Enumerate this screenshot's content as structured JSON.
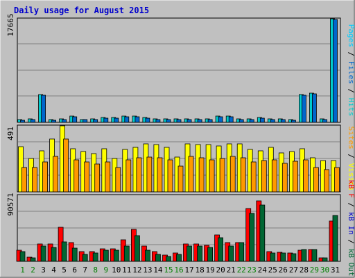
{
  "chart_data": [
    {
      "type": "bar",
      "title": "Daily usage for August 2015",
      "ymax_label": "17665",
      "ymax": 17665,
      "categories": [
        "1",
        "2",
        "3",
        "4",
        "5",
        "6",
        "7",
        "8",
        "9",
        "10",
        "11",
        "12",
        "13",
        "14",
        "15",
        "16",
        "17",
        "18",
        "19",
        "20",
        "21",
        "22",
        "23",
        "24",
        "25",
        "26",
        "27",
        "28",
        "29",
        "30",
        "31"
      ],
      "weekend_days": [
        "1",
        "2",
        "8",
        "9",
        "15",
        "16",
        "22",
        "23",
        "29",
        "30"
      ],
      "right_label": [
        "Pages",
        " / ",
        "Files",
        " / ",
        "Hits"
      ],
      "series": [
        {
          "name": "Hits",
          "color": "#00cccc",
          "values": [
            560,
            700,
            4800,
            560,
            700,
            1160,
            630,
            700,
            930,
            930,
            1160,
            1160,
            930,
            700,
            700,
            700,
            700,
            700,
            700,
            1160,
            1160,
            700,
            700,
            930,
            700,
            700,
            560,
            4800,
            5040,
            700,
            17665
          ]
        },
        {
          "name": "Files",
          "color": "#0066cc",
          "values": [
            490,
            630,
            4660,
            490,
            630,
            1100,
            560,
            630,
            860,
            860,
            1100,
            1100,
            860,
            630,
            630,
            630,
            630,
            630,
            630,
            1100,
            1100,
            630,
            630,
            860,
            630,
            630,
            490,
            4660,
            4930,
            630,
            17500
          ]
        },
        {
          "name": "Pages",
          "color": "#00ccff",
          "values": [
            0,
            0,
            0,
            0,
            0,
            0,
            0,
            0,
            0,
            0,
            0,
            0,
            0,
            0,
            0,
            0,
            0,
            0,
            0,
            0,
            0,
            0,
            0,
            0,
            0,
            0,
            0,
            0,
            0,
            0,
            0
          ]
        }
      ]
    },
    {
      "type": "bar",
      "ymax_label": "491",
      "ymax": 491,
      "right_label": [
        "Sites",
        " / ",
        "Visits"
      ],
      "series": [
        {
          "name": "Visits",
          "color": "#ffff00",
          "values": [
            337,
            249,
            307,
            395,
            491,
            323,
            300,
            285,
            323,
            249,
            315,
            330,
            359,
            352,
            330,
            259,
            359,
            352,
            352,
            345,
            359,
            359,
            315,
            307,
            330,
            293,
            300,
            322,
            256,
            234,
            234
          ]
        },
        {
          "name": "Sites",
          "color": "#ff9900",
          "values": [
            185,
            186,
            227,
            264,
            395,
            242,
            227,
            208,
            227,
            186,
            241,
            256,
            262,
            256,
            241,
            192,
            264,
            255,
            241,
            251,
            264,
            255,
            227,
            234,
            241,
            213,
            228,
            242,
            186,
            171,
            186
          ]
        }
      ]
    },
    {
      "type": "bar",
      "ymax_label": "90571",
      "ymax": 90571,
      "right_label": [
        "kB F",
        " / ",
        "kB In",
        " / ",
        "kB Out"
      ],
      "series": [
        {
          "name": "kB F",
          "color": "#ff0000",
          "values": [
            16000,
            7000,
            25000,
            25000,
            47000,
            26000,
            14000,
            14000,
            18000,
            18000,
            30000,
            44000,
            22000,
            14000,
            9000,
            12000,
            25000,
            25000,
            23000,
            37000,
            26000,
            26000,
            73000,
            83000,
            14000,
            13000,
            12000,
            16000,
            17000,
            6000,
            56000
          ]
        },
        {
          "name": "kB Out",
          "color": "#006633",
          "values": [
            14000,
            6000,
            22000,
            20000,
            27000,
            19000,
            10000,
            12000,
            16000,
            16000,
            22000,
            36000,
            16000,
            10000,
            8000,
            10000,
            22000,
            22000,
            20000,
            33000,
            22000,
            26000,
            66000,
            77000,
            12000,
            12000,
            11000,
            17000,
            17000,
            6000,
            63000
          ]
        },
        {
          "name": "kB In",
          "color": "#0000cc",
          "values": [
            0,
            0,
            0,
            0,
            0,
            0,
            0,
            0,
            0,
            0,
            0,
            0,
            0,
            0,
            0,
            0,
            0,
            0,
            0,
            0,
            0,
            0,
            0,
            0,
            0,
            0,
            0,
            0,
            0,
            0,
            0
          ]
        }
      ]
    }
  ]
}
